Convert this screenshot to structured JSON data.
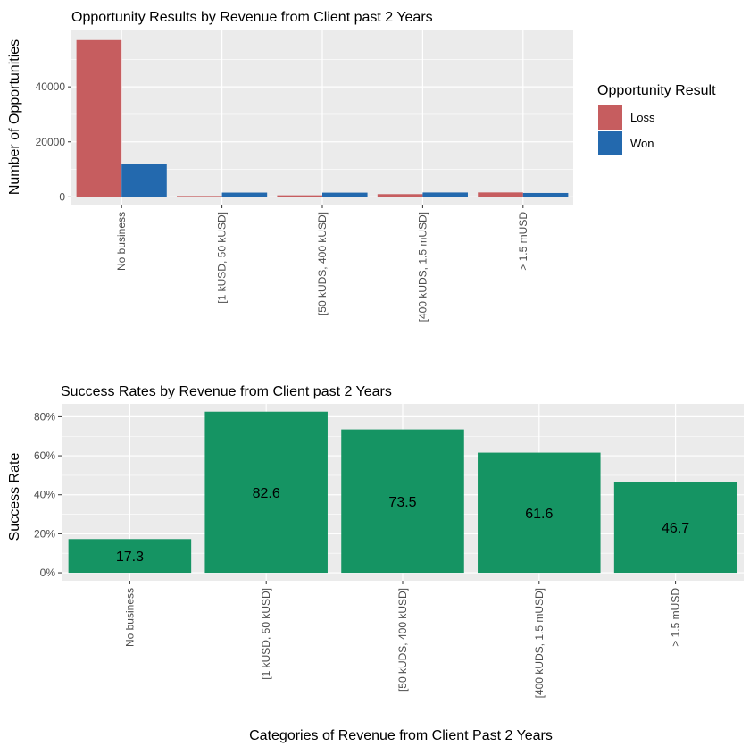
{
  "chart_data": [
    {
      "type": "bar",
      "title": "Opportunity Results by Revenue from Client past 2 Years",
      "xlabel": "",
      "ylabel": "Number of Opportunities",
      "categories": [
        "No business",
        "[1 kUSD, 50 kUSD]",
        "[50 kUDS, 400 kUSD]",
        "[400 kUDS, 1.5 mUSD]",
        "> 1.5 mUSD"
      ],
      "series": [
        {
          "name": "Loss",
          "color": "#C65D5F",
          "values": [
            57000,
            330,
            560,
            1000,
            1630
          ]
        },
        {
          "name": "Won",
          "color": "#2369AE",
          "values": [
            11950,
            1570,
            1550,
            1610,
            1430
          ]
        }
      ],
      "ylim": [
        0,
        60000
      ],
      "yticks": [
        0,
        20000,
        40000
      ],
      "ytick_labels": [
        "0",
        "20000",
        "40000"
      ],
      "legend": {
        "title": "Opportunity Result",
        "position": "right",
        "entries": [
          "Loss",
          "Won"
        ]
      },
      "grid": true
    },
    {
      "type": "bar",
      "title": "Success Rates by Revenue from Client past 2 Years",
      "xlabel": "Categories of Revenue from Client Past 2 Years",
      "ylabel": "Success Rate",
      "categories": [
        "No business",
        "[1 kUSD, 50 kUSD]",
        "[50 kUDS, 400 kUSD]",
        "[400 kUDS, 1.5 mUSD]",
        "> 1.5 mUSD"
      ],
      "values": [
        17.3,
        82.6,
        73.5,
        61.6,
        46.7
      ],
      "data_labels": [
        "17.3",
        "82.6",
        "73.5",
        "61.6",
        "46.7"
      ],
      "color": "#159463",
      "ylim": [
        0,
        85
      ],
      "yticks": [
        0,
        20,
        40,
        60,
        80
      ],
      "ytick_labels": [
        "0%",
        "20%",
        "40%",
        "60%",
        "80%"
      ],
      "grid": true
    }
  ]
}
